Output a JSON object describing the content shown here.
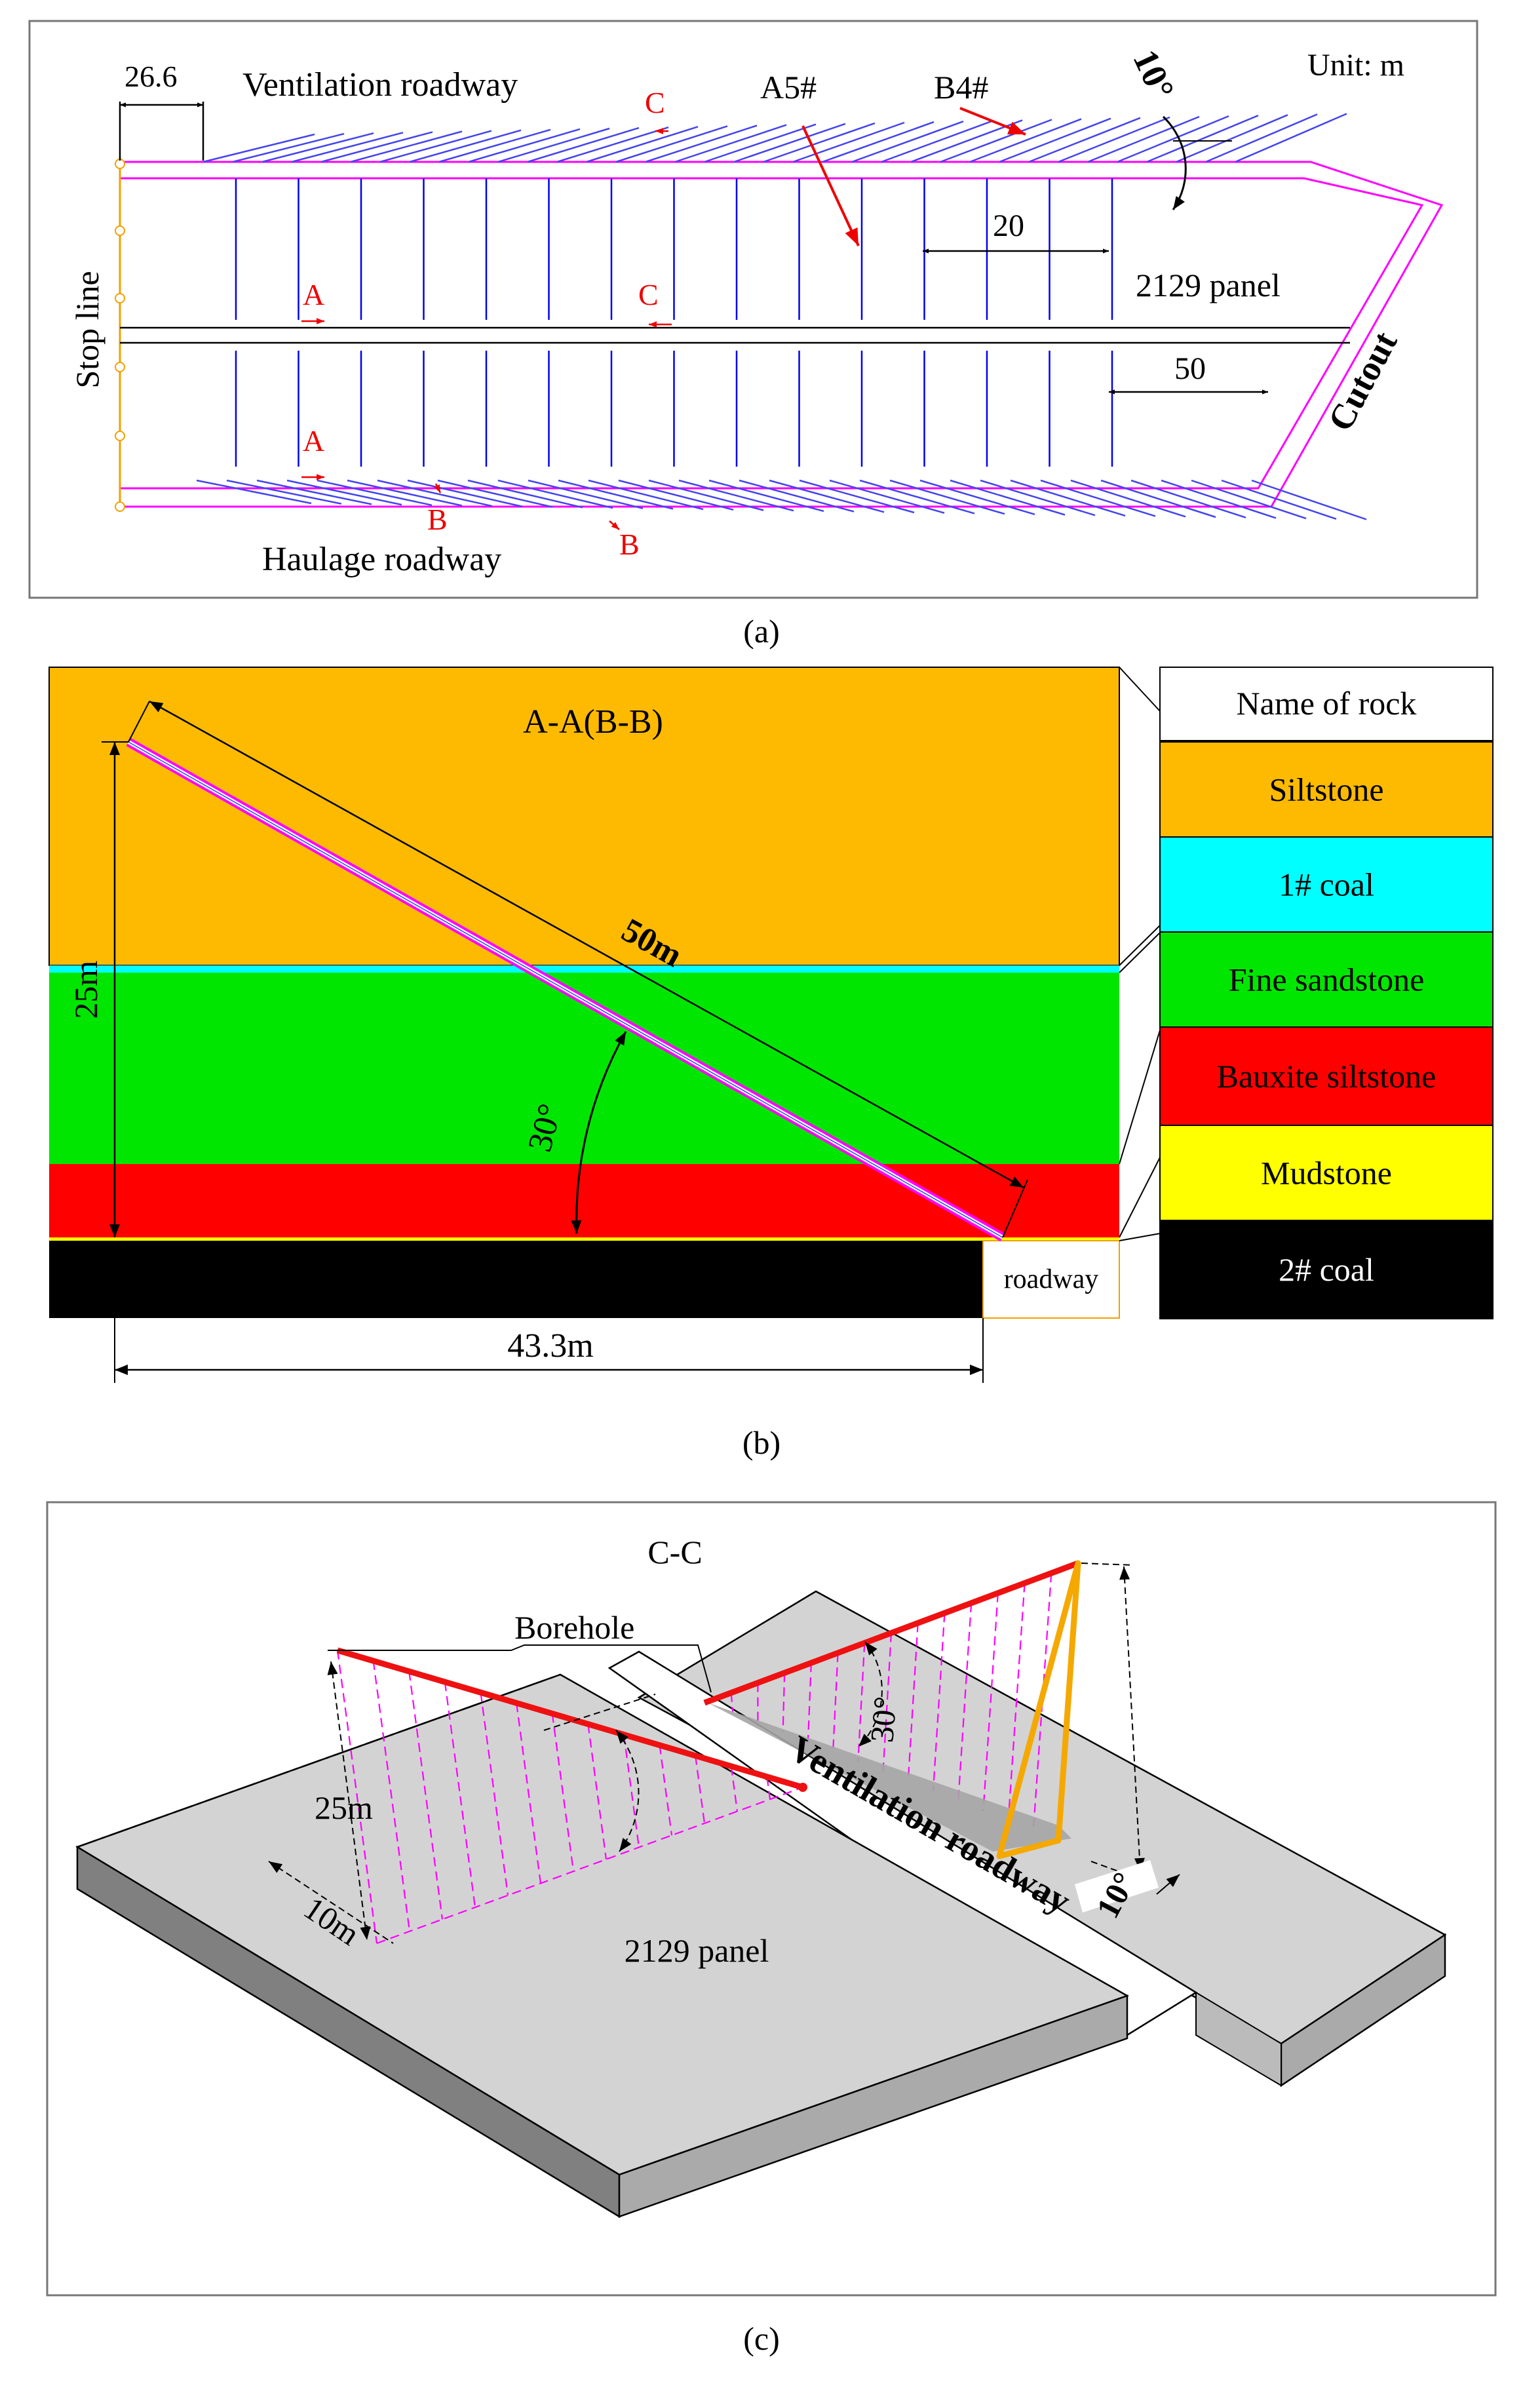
{
  "panel_a": {
    "caption": "(a)",
    "unit": "Unit: m",
    "ventilation_roadway": "Ventilation roadway",
    "haulage_roadway": "Haulage roadway",
    "stop_line": "Stop line",
    "cutout": "Cutout",
    "panel_name": "2129 panel",
    "dim_offset": "26.6",
    "dim_spacing": "20",
    "dim_cutout": "50",
    "angle": "10°",
    "borehole_a5": "A5#",
    "borehole_b4": "B4#",
    "section_a": "A",
    "section_b": "B",
    "section_c": "C"
  },
  "panel_b": {
    "caption": "(b)",
    "section_title": "A-A(B-B)",
    "length_label": "50m",
    "height_label": "25m",
    "angle_label": "30°",
    "horizontal_label": "43.3m",
    "roadway_label": "roadway",
    "legend_header": "Name of rock",
    "legend": [
      {
        "name": "Siltstone",
        "color": "#FDBA00"
      },
      {
        "name": "1# coal",
        "color": "#00FFFF"
      },
      {
        "name": "Fine sandstone",
        "color": "#00E600"
      },
      {
        "name": "Bauxite siltstone",
        "color": "#FF0000"
      },
      {
        "name": "Mudstone",
        "color": "#FFFF00"
      },
      {
        "name": "2# coal",
        "color": "#000000"
      }
    ]
  },
  "panel_c": {
    "caption": "(c)",
    "section_title": "C-C",
    "borehole_label": "Borehole",
    "height_label": "25m",
    "spacing_label": "10m",
    "angle_label": "30°",
    "tilt_label": "10°",
    "roadway_label": "Ventilation roadway",
    "panel_name": "2129 panel"
  }
}
